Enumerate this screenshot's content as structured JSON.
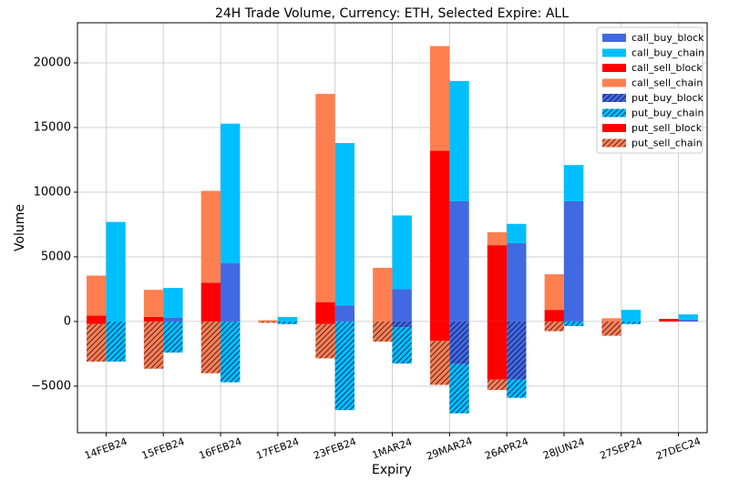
{
  "chart_data": {
    "type": "bar",
    "title": "24H Trade Volume, Currency: ETH, Selected Expire: ALL",
    "x_label": "Expiry",
    "y_label": "Volume",
    "categories": [
      "14FEB24",
      "15FEB24",
      "16FEB24",
      "17FEB24",
      "23FEB24",
      "1MAR24",
      "29MAR24",
      "26APR24",
      "28JUN24",
      "27SEP24",
      "27DEC24"
    ],
    "series": [
      {
        "name": "call_buy_block",
        "color": "#4169e1",
        "hatch": false,
        "values": [
          0,
          300,
          4500,
          0,
          1250,
          2500,
          9300,
          6050,
          9300,
          0,
          150
        ]
      },
      {
        "name": "call_buy_chain",
        "color": "#00bfff",
        "hatch": false,
        "values": [
          7700,
          2300,
          10800,
          350,
          12550,
          5700,
          9300,
          1500,
          2800,
          900,
          400
        ]
      },
      {
        "name": "call_sell_block",
        "color": "#ff0000",
        "hatch": false,
        "values": [
          450,
          350,
          3000,
          0,
          1500,
          0,
          13200,
          5900,
          900,
          0,
          200
        ]
      },
      {
        "name": "call_sell_chain",
        "color": "#ff7f50",
        "hatch": false,
        "values": [
          3100,
          2100,
          7100,
          100,
          16100,
          4150,
          8100,
          1000,
          2750,
          250,
          0
        ]
      },
      {
        "name": "put_buy_block",
        "color": "#4169e1",
        "hatch": true,
        "values": [
          0,
          0,
          0,
          0,
          0,
          -450,
          -3300,
          -4500,
          0,
          0,
          0
        ]
      },
      {
        "name": "put_buy_chain",
        "color": "#00bfff",
        "hatch": true,
        "values": [
          -3100,
          -2400,
          -4700,
          -200,
          -6850,
          -2800,
          -3800,
          -1400,
          -350,
          -200,
          0
        ]
      },
      {
        "name": "put_sell_block",
        "color": "#ff0000",
        "hatch": false,
        "values": [
          -200,
          0,
          0,
          0,
          -200,
          0,
          -1500,
          -4500,
          0,
          0,
          0
        ]
      },
      {
        "name": "put_sell_chain",
        "color": "#ff7f50",
        "hatch": true,
        "values": [
          -2900,
          -3650,
          -4000,
          -100,
          -2650,
          -1550,
          -3400,
          -800,
          -750,
          -1100,
          0
        ]
      }
    ],
    "ylim": [
      -8600,
      23100
    ],
    "yticks": [
      {
        "value": -5000,
        "label": "−5000"
      },
      0,
      5000,
      10000,
      15000,
      20000
    ],
    "grid": true,
    "legend": "upper right"
  }
}
